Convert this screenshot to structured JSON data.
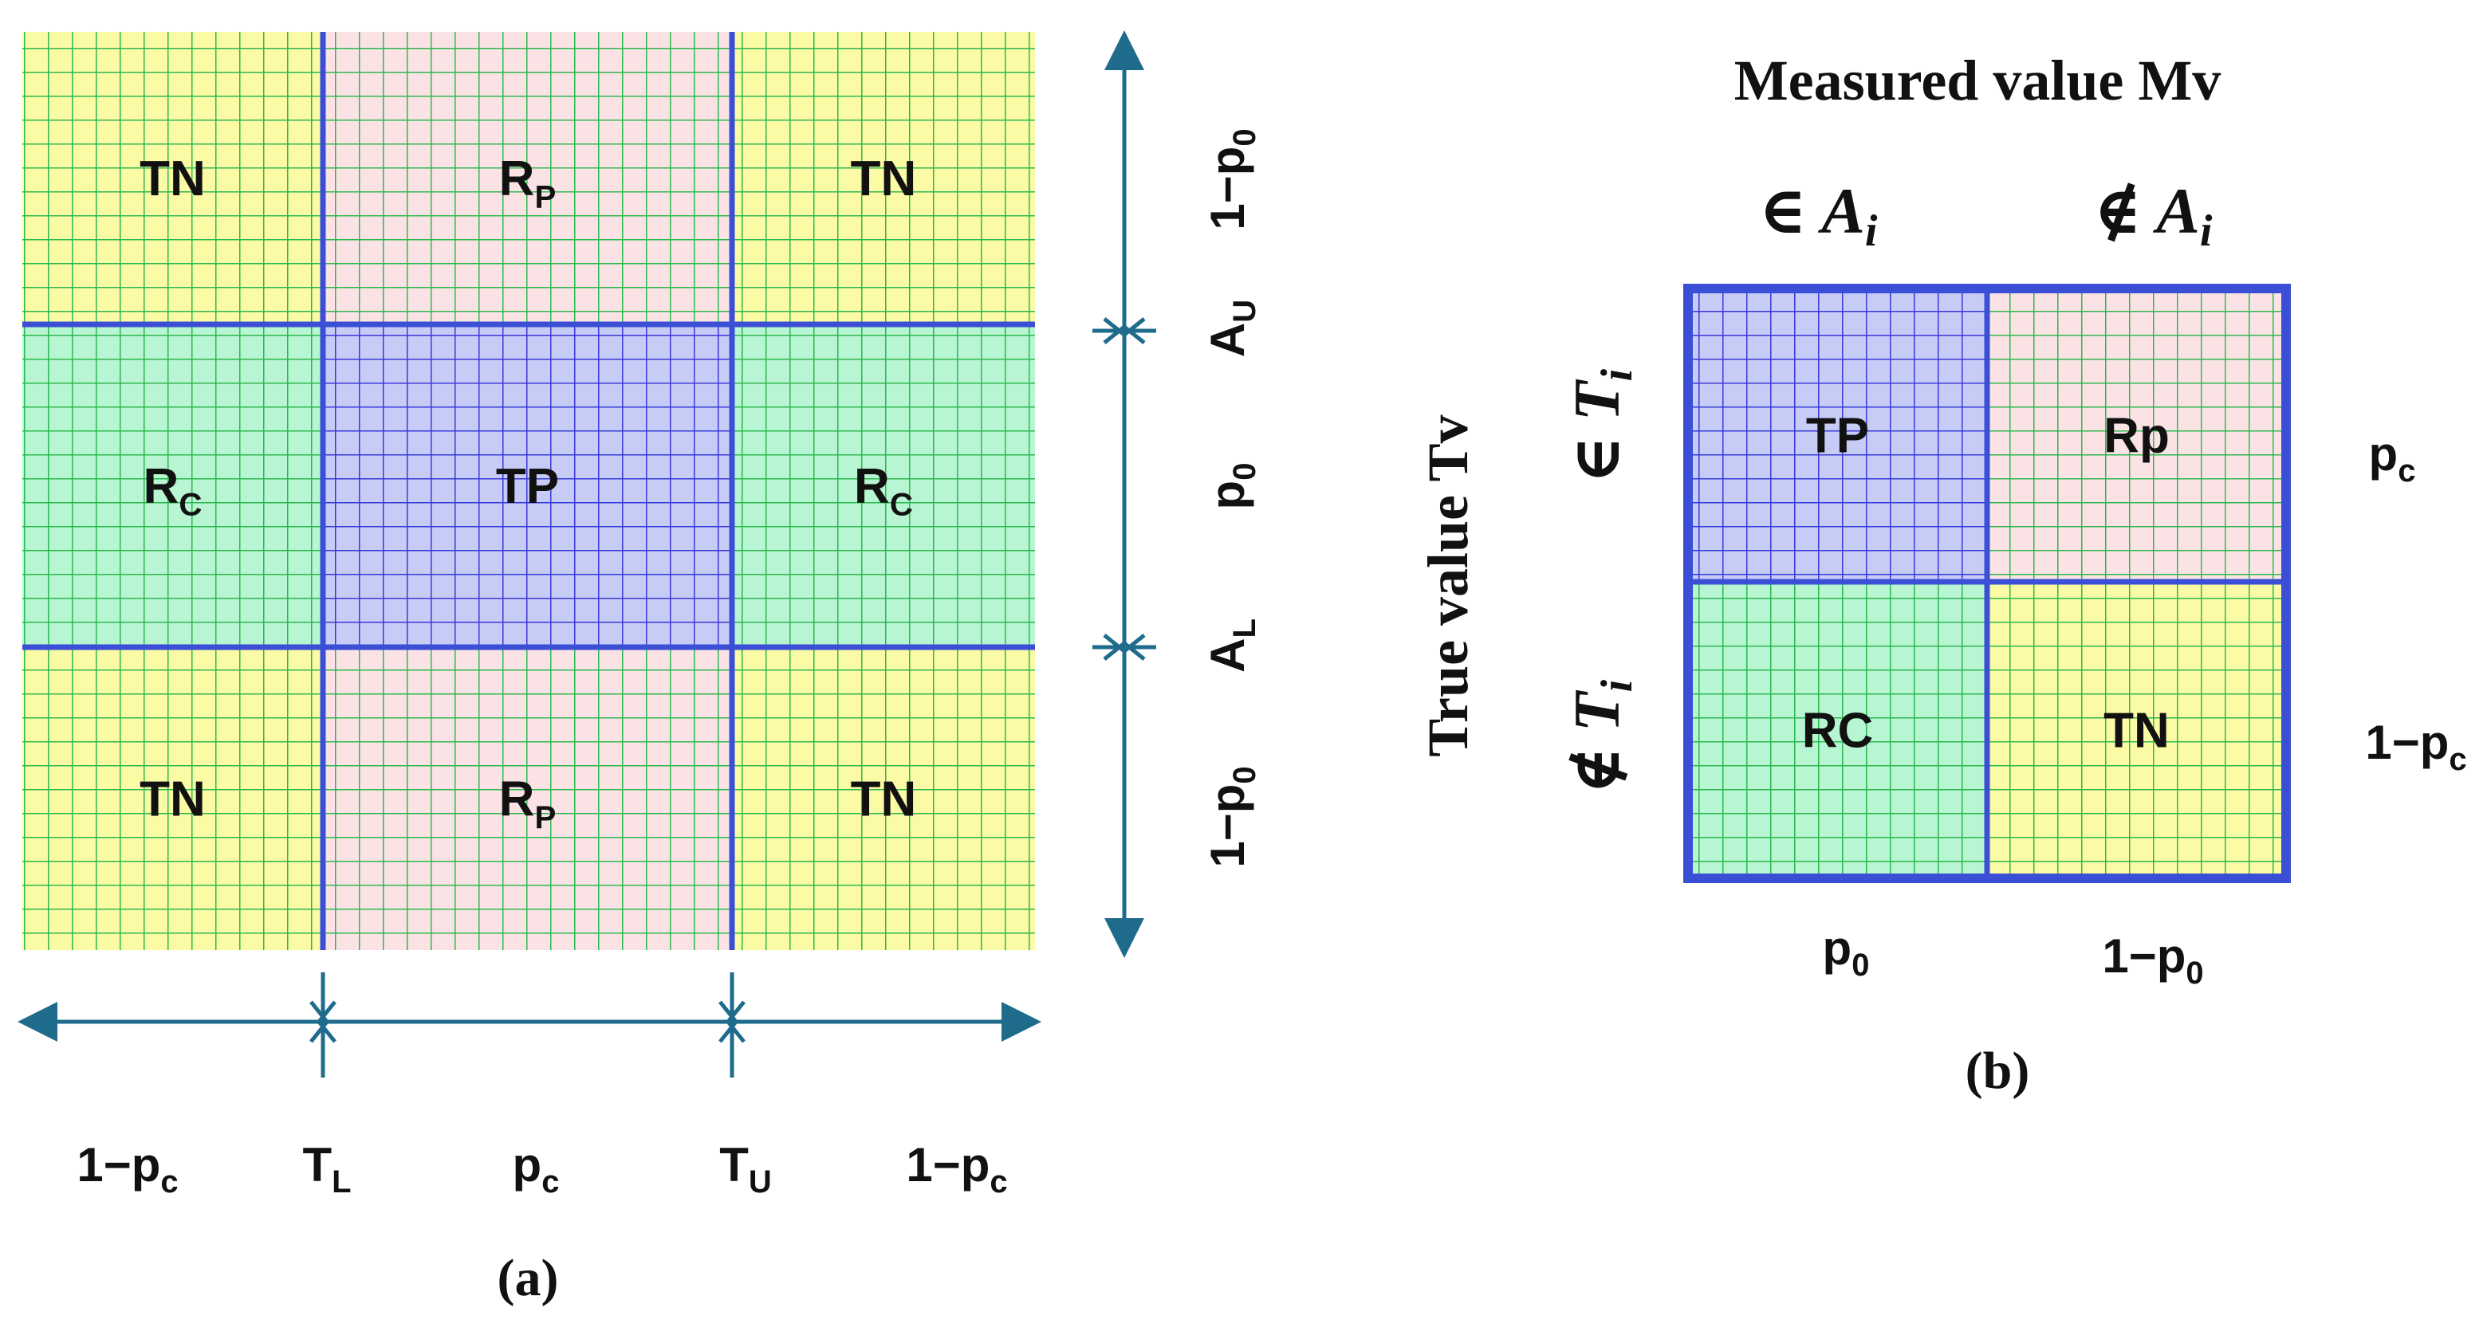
{
  "colors": {
    "yellow": "#fbfba6",
    "pink": "#fbe3e5",
    "green": "#b8f5d2",
    "blue": "#c7ccf7",
    "grid_green": "#2bb84f",
    "grid_blue": "#3838d8",
    "arrow": "#1f6b8c",
    "frame": "#3a4fd6"
  },
  "panel_a": {
    "cells": [
      {
        "label": "TN",
        "color": "yellow"
      },
      {
        "label": "R",
        "sub": "P",
        "color": "pink"
      },
      {
        "label": "TN",
        "color": "yellow"
      },
      {
        "label": "R",
        "sub": "C",
        "color": "green"
      },
      {
        "label": "TP",
        "color": "blue"
      },
      {
        "label": "R",
        "sub": "C",
        "color": "green"
      },
      {
        "label": "TN",
        "color": "yellow"
      },
      {
        "label": "R",
        "sub": "P",
        "color": "pink"
      },
      {
        "label": "TN",
        "color": "yellow"
      }
    ],
    "vertical_labels": {
      "top": {
        "main": "1−p",
        "sub": "0"
      },
      "au": {
        "main": "A",
        "sub": "U"
      },
      "mid": {
        "main": "p",
        "sub": "0"
      },
      "al": {
        "main": "A",
        "sub": "L"
      },
      "bottom": {
        "main": "1−p",
        "sub": "0"
      }
    },
    "horizontal_labels": {
      "left": {
        "main": "1−p",
        "sub": "c"
      },
      "tl": {
        "main": "T",
        "sub": "L"
      },
      "mid": {
        "main": "p",
        "sub": "c"
      },
      "tu": {
        "main": "T",
        "sub": "U"
      },
      "right": {
        "main": "1−p",
        "sub": "c"
      }
    },
    "caption": "(a)"
  },
  "panel_b": {
    "column_title": "Measured value Mv",
    "col_headers": [
      {
        "op": "∈",
        "var": "A",
        "sub": "i"
      },
      {
        "op": "∉",
        "var": "A",
        "sub": "i"
      }
    ],
    "row_title": "True value Tv",
    "row_headers": [
      {
        "op": "∈",
        "var": "T",
        "sub": "i"
      },
      {
        "op": "∉",
        "var": "T",
        "sub": "i"
      }
    ],
    "cells": [
      {
        "label": "TP",
        "color": "blue"
      },
      {
        "label": "Rp",
        "color": "pink"
      },
      {
        "label": "RC",
        "color": "green"
      },
      {
        "label": "TN",
        "color": "yellow"
      }
    ],
    "right_labels": [
      {
        "main": "p",
        "sub": "c"
      },
      {
        "main": "1−p",
        "sub": "c"
      }
    ],
    "bottom_labels": [
      {
        "main": "p",
        "sub": "0"
      },
      {
        "main": "1−p",
        "sub": "0"
      }
    ],
    "caption": "(b)"
  }
}
